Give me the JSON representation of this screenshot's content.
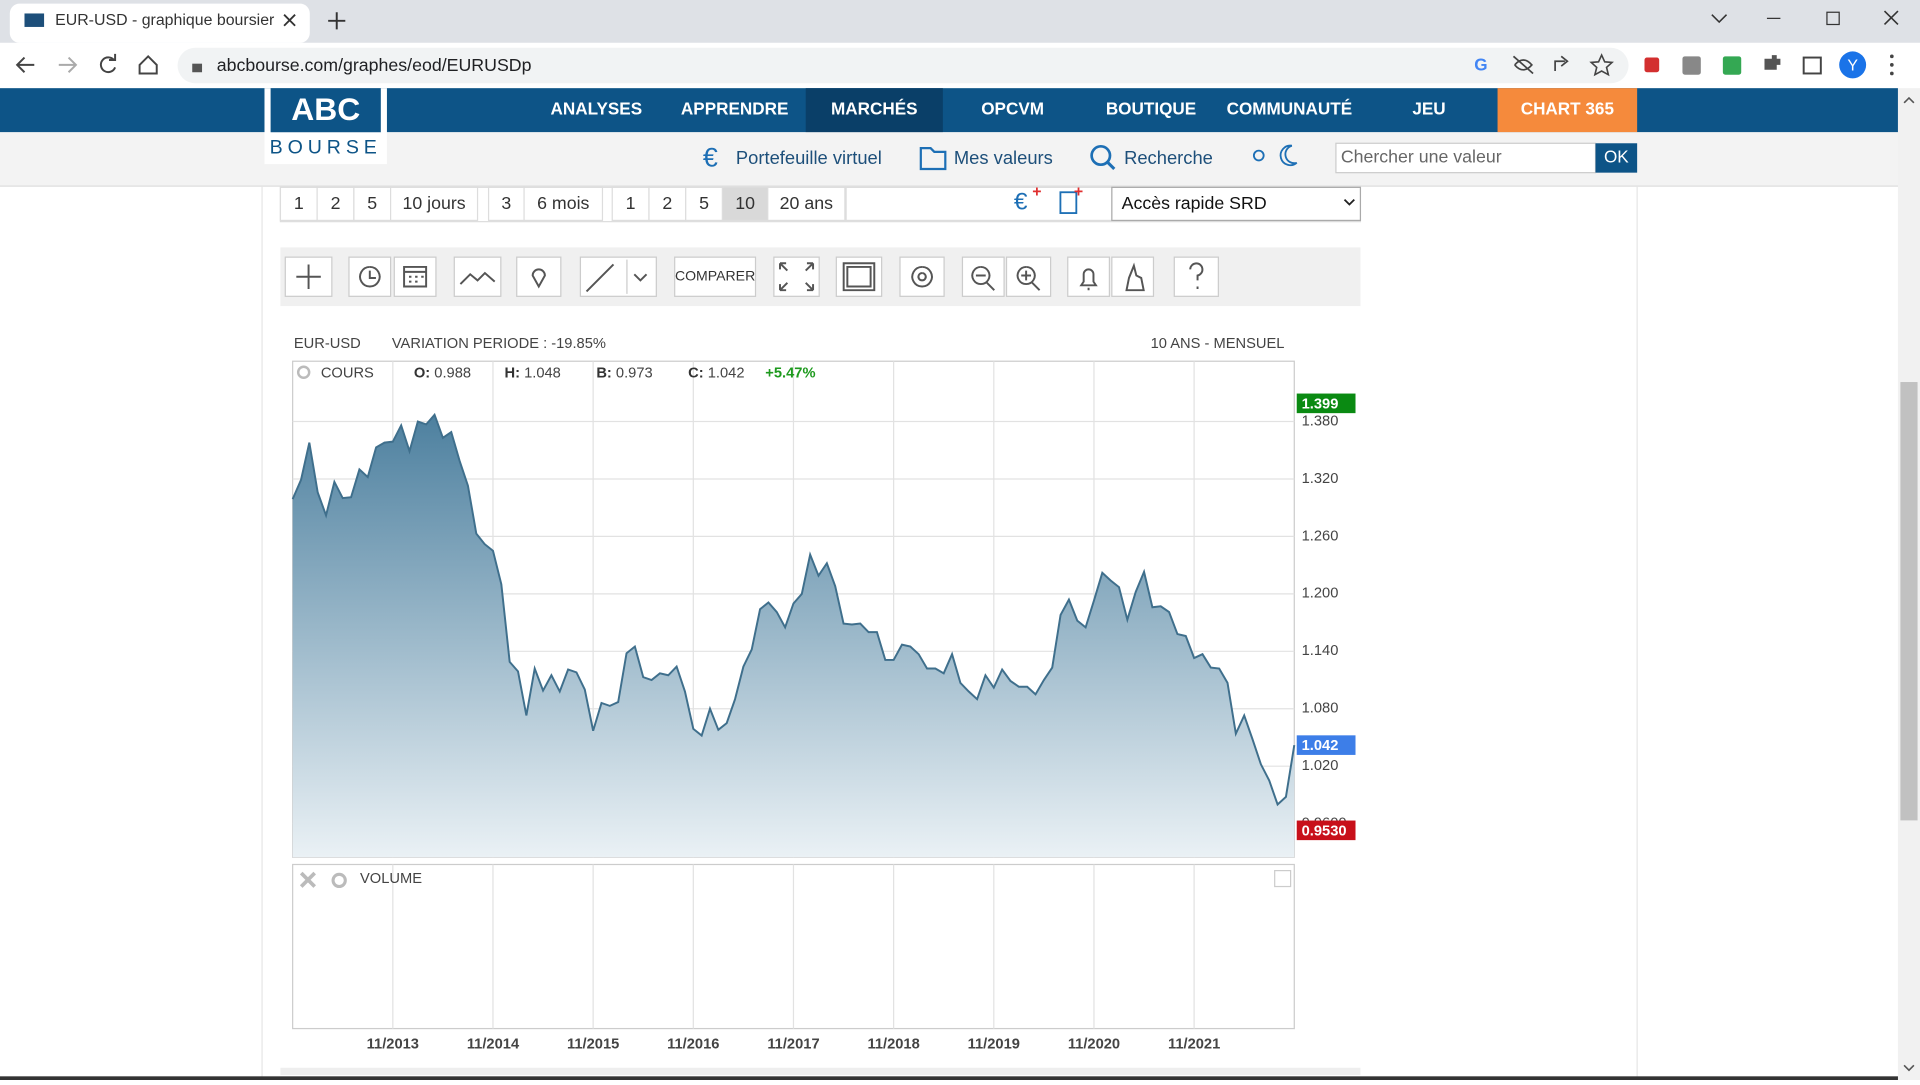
{
  "browser": {
    "tab_title": "EUR-USD - graphique boursier historique",
    "url": "abcbourse.com/graphes/eod/EURUSDp",
    "profile": "Y"
  },
  "site": {
    "logo_top": "ABC",
    "logo_bottom": "BOURSE",
    "nav": [
      "ANALYSES",
      "APPRENDRE",
      "MARCHÉS",
      "OPCVM",
      "BOUTIQUE",
      "COMMUNAUTÉ",
      "JEU"
    ],
    "nav_highlight": "CHART 365",
    "subnav": [
      "Portefeuille virtuel",
      "Mes valeurs",
      "Recherche"
    ],
    "search_placeholder": "Chercher une valeur",
    "search_button": "OK"
  },
  "periods": [
    "1",
    "2",
    "5",
    "10 jours",
    "3",
    "6 mois",
    "1",
    "2",
    "5",
    "10",
    "20 ans"
  ],
  "quick_access": "Accès rapide SRD",
  "toolbar": {
    "compare": "COMPARER"
  },
  "chart_data": {
    "type": "area",
    "symbol": "EUR-USD",
    "variation": "VARIATION PERIODE : -19.85%",
    "period_label": "10 ANS - MENSUEL",
    "panel_label": "COURS",
    "ohlc": [
      {
        "key": "O:",
        "value": 0.988
      },
      {
        "key": "H:",
        "value": 1.048
      },
      {
        "key": "B:",
        "value": 0.973
      },
      {
        "key": "C:",
        "value": 1.042
      }
    ],
    "change": "+5.47%",
    "volume_label": "VOLUME",
    "color": "#3f6f8c",
    "categories": [
      null,
      null,
      null,
      null,
      null,
      null,
      null,
      null,
      null,
      null,
      null,
      null,
      "11/2013",
      null,
      null,
      null,
      null,
      null,
      null,
      null,
      null,
      null,
      null,
      null,
      "11/2014",
      null,
      null,
      null,
      null,
      null,
      null,
      null,
      null,
      null,
      null,
      null,
      "11/2015",
      null,
      null,
      null,
      null,
      null,
      null,
      null,
      null,
      null,
      null,
      null,
      "11/2016",
      null,
      null,
      null,
      null,
      null,
      null,
      null,
      null,
      null,
      null,
      null,
      "11/2017",
      null,
      null,
      null,
      null,
      null,
      null,
      null,
      null,
      null,
      null,
      null,
      "11/2018",
      null,
      null,
      null,
      null,
      null,
      null,
      null,
      null,
      null,
      null,
      null,
      "11/2019",
      null,
      null,
      null,
      null,
      null,
      null,
      null,
      null,
      null,
      null,
      null,
      "11/2020",
      null,
      null,
      null,
      null,
      null,
      null,
      null,
      null,
      null,
      null,
      null,
      "11/2021",
      null,
      null,
      null,
      null,
      null,
      null,
      null,
      null,
      null,
      null,
      null,
      null
    ],
    "values": [
      1.299,
      1.319,
      1.358,
      1.306,
      1.282,
      1.317,
      1.3,
      1.301,
      1.33,
      1.322,
      1.353,
      1.358,
      1.359,
      1.376,
      1.349,
      1.38,
      1.377,
      1.387,
      1.363,
      1.369,
      1.339,
      1.313,
      1.263,
      1.252,
      1.245,
      1.21,
      1.129,
      1.119,
      1.073,
      1.122,
      1.099,
      1.115,
      1.098,
      1.121,
      1.118,
      1.1,
      1.057,
      1.086,
      1.083,
      1.087,
      1.138,
      1.145,
      1.113,
      1.11,
      1.117,
      1.115,
      1.124,
      1.098,
      1.059,
      1.052,
      1.08,
      1.058,
      1.065,
      1.09,
      1.124,
      1.142,
      1.184,
      1.191,
      1.181,
      1.165,
      1.19,
      1.2,
      1.241,
      1.219,
      1.232,
      1.208,
      1.169,
      1.168,
      1.169,
      1.16,
      1.16,
      1.131,
      1.131,
      1.147,
      1.145,
      1.137,
      1.122,
      1.122,
      1.117,
      1.137,
      1.107,
      1.098,
      1.09,
      1.115,
      1.102,
      1.121,
      1.109,
      1.103,
      1.103,
      1.095,
      1.11,
      1.123,
      1.178,
      1.194,
      1.172,
      1.165,
      1.193,
      1.222,
      1.214,
      1.207,
      1.173,
      1.202,
      1.223,
      1.186,
      1.187,
      1.181,
      1.158,
      1.156,
      1.133,
      1.137,
      1.123,
      1.122,
      1.107,
      1.054,
      1.073,
      1.048,
      1.022,
      1.005,
      0.98,
      0.988,
      1.042
    ],
    "ylim": [
      0.925,
      1.443
    ],
    "yticks": [
      {
        "value": 0.96,
        "label": "0.9600"
      },
      {
        "value": 1.02,
        "label": "1.020"
      },
      {
        "value": 1.08,
        "label": "1.080"
      },
      {
        "value": 1.14,
        "label": "1.140"
      },
      {
        "value": 1.2,
        "label": "1.200"
      },
      {
        "value": 1.26,
        "label": "1.260"
      },
      {
        "value": 1.32,
        "label": "1.320"
      },
      {
        "value": 1.38,
        "label": "1.380"
      }
    ],
    "grid": true,
    "markers": [
      {
        "value": 1.399,
        "color": "#0a8a12"
      },
      {
        "value": 1.042,
        "color": "#3d7ee8"
      },
      {
        "value": 0.953,
        "label": "0.9530",
        "color": "#c8101a"
      }
    ]
  }
}
